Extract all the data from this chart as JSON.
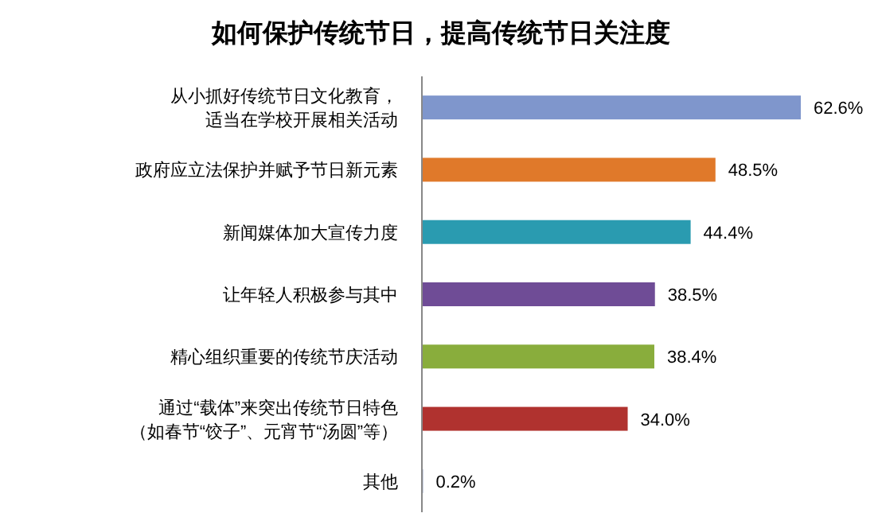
{
  "chart_data": {
    "type": "bar",
    "orientation": "horizontal",
    "title": "如何保护传统节日，提高传统节日关注度",
    "categories": [
      "从小抓好传统节日文化教育，适当在学校开展相关活动",
      "政府应立法保护并赋予节日新元素",
      "新闻媒体加大宣传力度",
      "让年轻人积极参与其中",
      "精心组织重要的传统节庆活动",
      "通过“载体”来突出传统节日特色（如春节“饺子”、元宵节“汤圆”等）",
      "其他"
    ],
    "values": [
      62.6,
      48.5,
      44.4,
      38.5,
      38.4,
      34.0,
      0.2
    ],
    "colors": [
      "#7f96cc",
      "#e0792a",
      "#2a9bb0",
      "#6f4c96",
      "#89ad3c",
      "#b0322f",
      "#9aa9c9"
    ],
    "value_labels": [
      "62.6%",
      "48.5%",
      "44.4%",
      "38.5%",
      "38.4%",
      "34.0%",
      "0.2%"
    ]
  }
}
